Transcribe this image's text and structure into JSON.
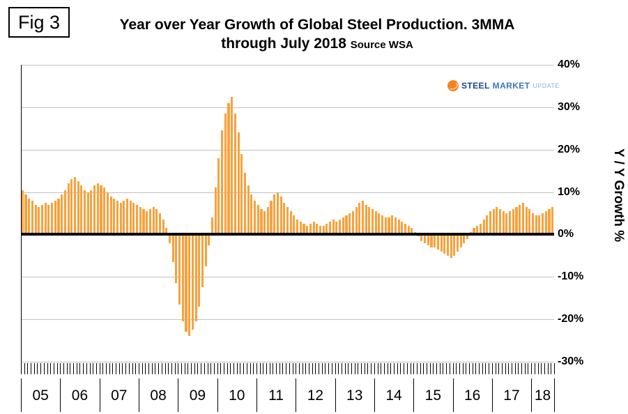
{
  "figure_label": "Fig 3",
  "title_line1": "Year over Year Growth of Global Steel Production. 3MMA",
  "title_line2": "through July 2018",
  "title_source": "Source WSA",
  "y_axis_label": "Y / Y Growth %",
  "logo": {
    "steel": "STEEL",
    "market": "MARKET",
    "update": "UPDATE"
  },
  "colors": {
    "bar": "#F9A13C",
    "gridline": "#C0C0C0",
    "zero_line": "#000000",
    "logo_orange": "#F58220",
    "logo_dark_blue": "#17458F",
    "logo_mid_blue": "#3C77B8",
    "logo_light_blue": "#90B4D8"
  },
  "chart_data": {
    "type": "bar",
    "title": "Year over Year Growth of Global Steel Production. 3MMA through July 2018",
    "subtitle": "Source WSA",
    "ylabel": "Y / Y Growth %",
    "ylim": [
      -30,
      40
    ],
    "grid": true,
    "start_month": "2005-01",
    "end_month": "2018-07",
    "x_year_labels": [
      "05",
      "06",
      "07",
      "08",
      "09",
      "10",
      "11",
      "12",
      "13",
      "14",
      "15",
      "16",
      "17",
      "18"
    ],
    "months_in_last_year": 7,
    "y_ticks": [
      {
        "v": 40,
        "label": "40%"
      },
      {
        "v": 30,
        "label": "30%"
      },
      {
        "v": 20,
        "label": "20%"
      },
      {
        "v": 10,
        "label": "10%"
      },
      {
        "v": 0,
        "label": "0%"
      },
      {
        "v": -10,
        "label": "-10%"
      },
      {
        "v": -20,
        "label": "-20%"
      },
      {
        "v": -30,
        "label": "-30%"
      }
    ],
    "values": [
      10.5,
      9.5,
      8.5,
      8,
      7,
      6.5,
      7,
      7.5,
      7,
      7.5,
      8,
      8.5,
      9.5,
      10.5,
      12,
      13,
      13.5,
      12.5,
      11.5,
      10.5,
      10,
      10.5,
      11.5,
      12,
      11.5,
      11,
      10,
      9,
      8.5,
      8,
      7.5,
      8,
      8.5,
      8,
      7.5,
      7,
      6.5,
      6,
      5.5,
      6,
      6.5,
      6,
      5,
      3.5,
      1.5,
      -2,
      -6.5,
      -11.5,
      -16.5,
      -20.5,
      -23,
      -24,
      -22.5,
      -20.5,
      -17,
      -12.5,
      -7.5,
      -2.5,
      4,
      11,
      18,
      24.5,
      28.5,
      31,
      32.5,
      28.5,
      24,
      19,
      14.5,
      11.5,
      9.5,
      8,
      7,
      6,
      5.5,
      6.5,
      8,
      9.5,
      10,
      9,
      7.5,
      6.5,
      5.5,
      4.5,
      3.5,
      3,
      2.5,
      2,
      2.5,
      3,
      2.5,
      2,
      2,
      2.5,
      3,
      3.5,
      3,
      3.5,
      4,
      4.5,
      5,
      5.5,
      6.5,
      7.5,
      8,
      7,
      6.5,
      6,
      5.5,
      5,
      4.5,
      4,
      4,
      4.5,
      4,
      3.5,
      3,
      2.5,
      2,
      1.5,
      0.5,
      -0.5,
      -1.5,
      -2,
      -2.5,
      -3,
      -3,
      -3.5,
      -4,
      -4.5,
      -5,
      -5.5,
      -5,
      -4,
      -3,
      -2,
      -1,
      0.5,
      1.5,
      2,
      2.5,
      3.5,
      4.5,
      5.5,
      6,
      6.5,
      6,
      5.5,
      5,
      5.5,
      6,
      6.5,
      7,
      7.5,
      6.5,
      6,
      5,
      4.5,
      4.5,
      5,
      5.5,
      6,
      6.5
    ]
  }
}
